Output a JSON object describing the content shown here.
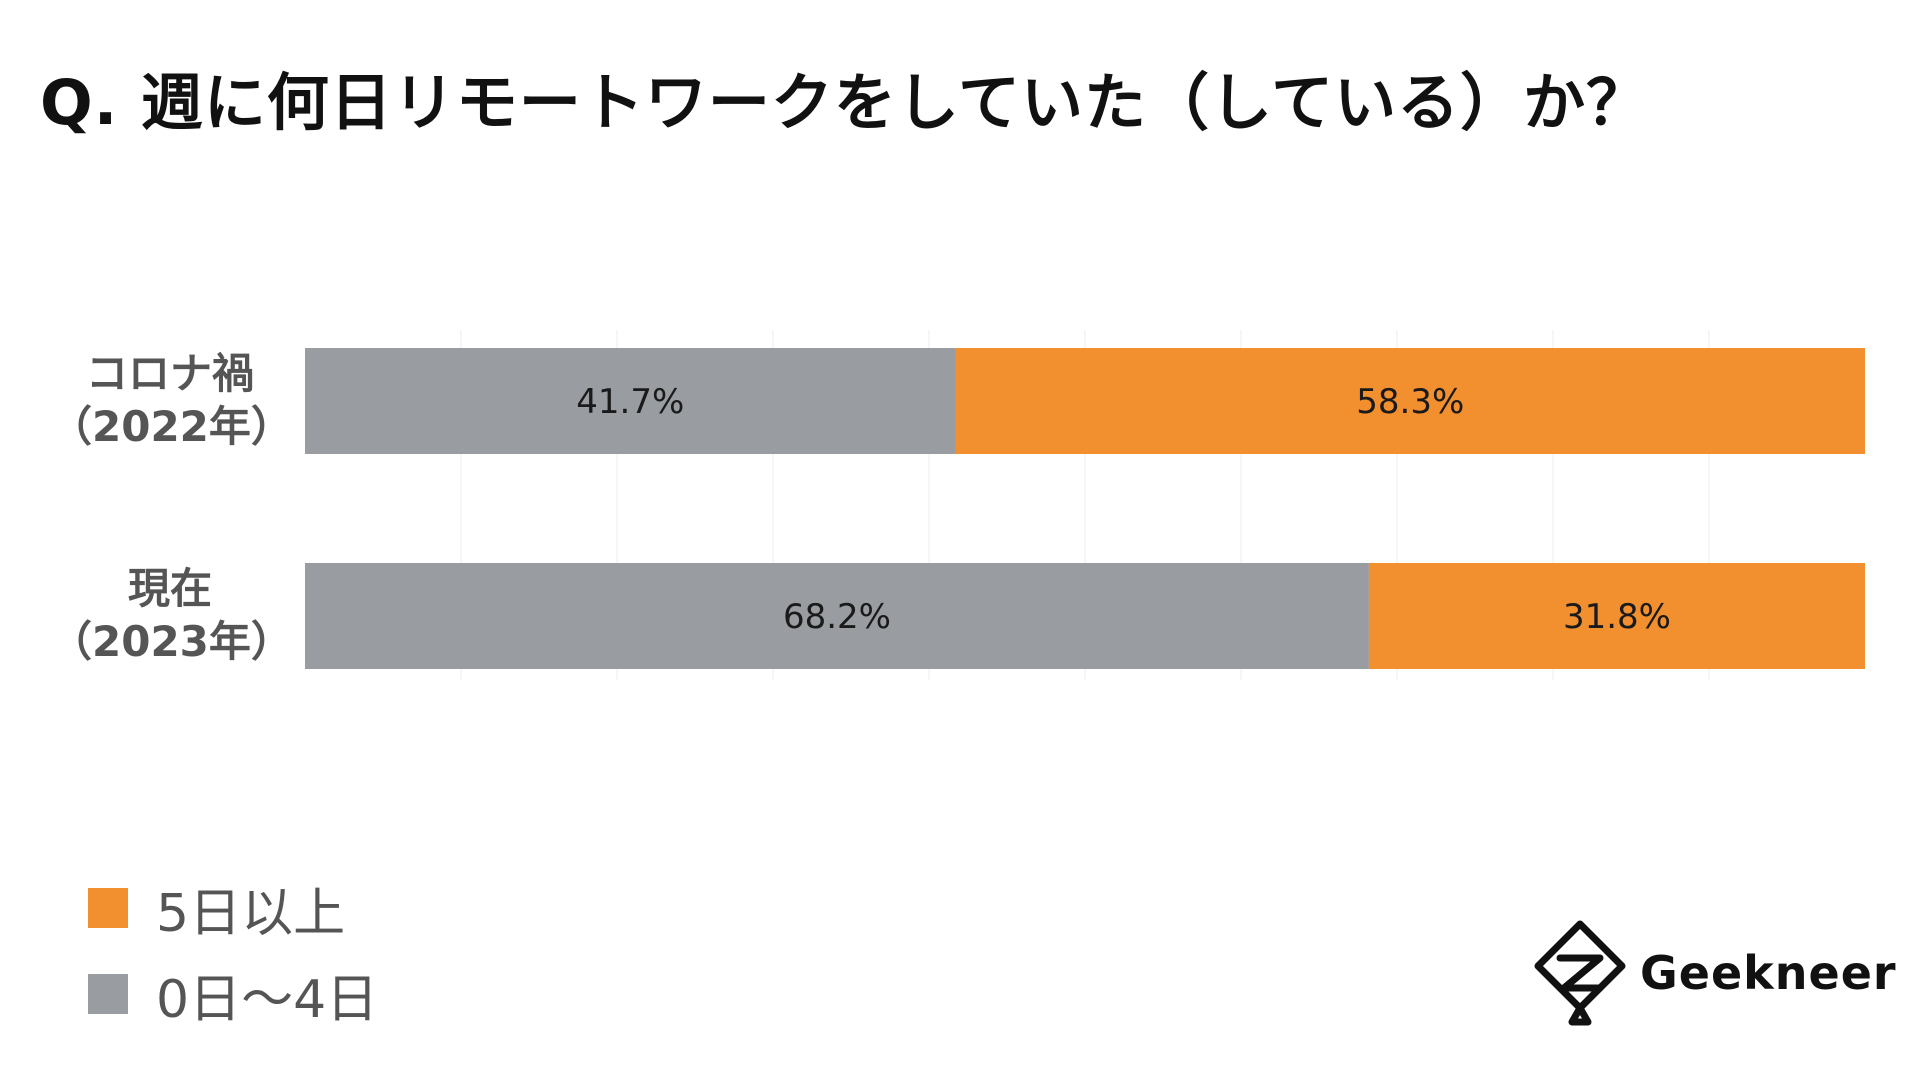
{
  "title": "Q. 週に何日リモートワークをしていた（している）か？",
  "chart_data": {
    "type": "bar",
    "orientation": "horizontal",
    "stacked": true,
    "normalized_percent": true,
    "categories": [
      {
        "line1": "コロナ禍",
        "line2": "（2022年）"
      },
      {
        "line1": "現在",
        "line2": "（2023年）"
      }
    ],
    "series": [
      {
        "name": "0日〜4日",
        "color": "#999ca1",
        "values": [
          41.7,
          68.2
        ],
        "labels": [
          "41.7%",
          "68.2%"
        ]
      },
      {
        "name": "5日以上",
        "color": "#f28f2f",
        "values": [
          58.3,
          31.8
        ],
        "labels": [
          "58.3%",
          "31.8%"
        ]
      }
    ],
    "xlim": [
      0,
      100
    ],
    "grid": true
  },
  "legend": [
    {
      "label": "5日以上",
      "color": "#f28f2f"
    },
    {
      "label": "0日〜4日",
      "color": "#999ca1"
    }
  ],
  "logo": {
    "text": "Geekneer"
  }
}
